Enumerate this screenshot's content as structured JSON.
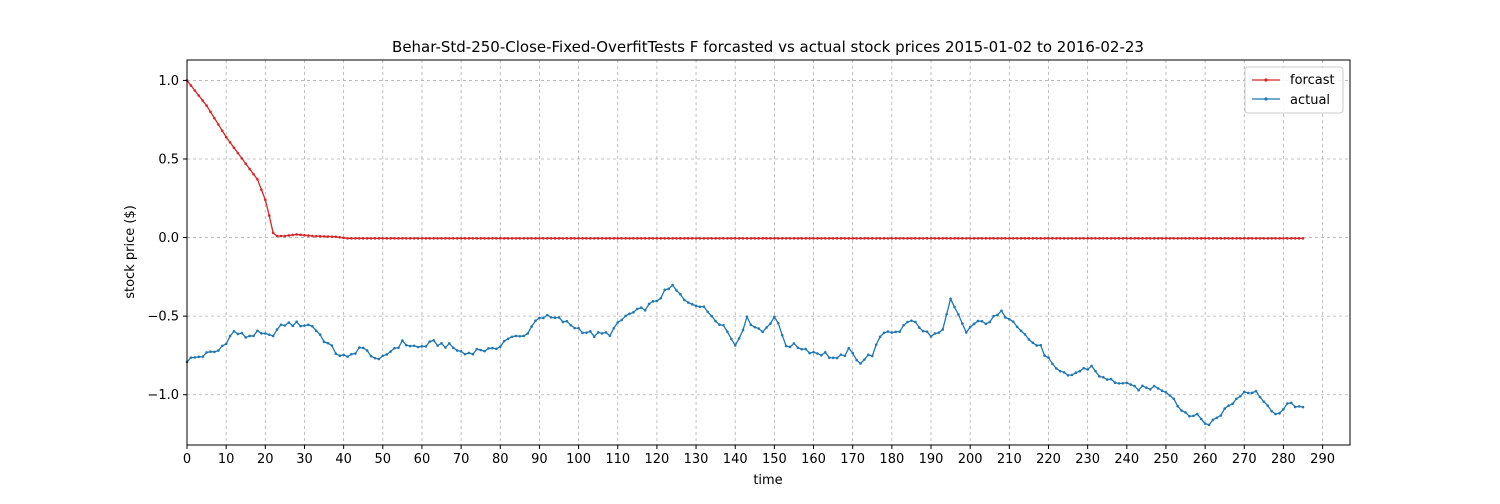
{
  "chart_data": {
    "type": "line",
    "title": "Behar-Std-250-Close-Fixed-OverfitTests F forcasted vs actual stock prices 2015-01-02 to 2016-02-23",
    "xlabel": "time",
    "ylabel": "stock price ($)",
    "xlim": [
      0,
      297
    ],
    "ylim": [
      -1.32,
      1.13
    ],
    "xticks": [
      0,
      10,
      20,
      30,
      40,
      50,
      60,
      70,
      80,
      90,
      100,
      110,
      120,
      130,
      140,
      150,
      160,
      170,
      180,
      190,
      200,
      210,
      220,
      230,
      240,
      250,
      260,
      270,
      280,
      290
    ],
    "yticks": [
      1.0,
      0.5,
      0.0,
      -0.5,
      -1.0
    ],
    "ytick_labels": [
      "1.0",
      "0.5",
      "0.0",
      "−0.5",
      "−1.0"
    ],
    "grid": true,
    "legend_position": "top-right",
    "n_points": 286,
    "series": [
      {
        "name": "forcast",
        "color": "#d62728",
        "keypoints": [
          [
            0,
            1.0
          ],
          [
            5,
            0.84
          ],
          [
            10,
            0.64
          ],
          [
            15,
            0.47
          ],
          [
            18,
            0.37
          ],
          [
            20,
            0.24
          ],
          [
            21,
            0.14
          ],
          [
            22,
            0.03
          ],
          [
            23,
            0.01
          ],
          [
            25,
            0.01
          ],
          [
            28,
            0.02
          ],
          [
            32,
            0.01
          ],
          [
            38,
            0.005
          ],
          [
            41,
            -0.005
          ],
          [
            285,
            -0.005
          ]
        ]
      },
      {
        "name": "actual",
        "color": "#1f77b4",
        "keypoints": [
          [
            0,
            -0.78
          ],
          [
            4,
            -0.75
          ],
          [
            8,
            -0.72
          ],
          [
            12,
            -0.6
          ],
          [
            15,
            -0.63
          ],
          [
            18,
            -0.61
          ],
          [
            21,
            -0.63
          ],
          [
            25,
            -0.55
          ],
          [
            28,
            -0.55
          ],
          [
            32,
            -0.56
          ],
          [
            35,
            -0.65
          ],
          [
            38,
            -0.73
          ],
          [
            41,
            -0.77
          ],
          [
            44,
            -0.7
          ],
          [
            47,
            -0.74
          ],
          [
            49,
            -0.79
          ],
          [
            52,
            -0.72
          ],
          [
            55,
            -0.67
          ],
          [
            59,
            -0.7
          ],
          [
            63,
            -0.67
          ],
          [
            67,
            -0.69
          ],
          [
            71,
            -0.74
          ],
          [
            75,
            -0.71
          ],
          [
            78,
            -0.72
          ],
          [
            82,
            -0.64
          ],
          [
            86,
            -0.63
          ],
          [
            90,
            -0.5
          ],
          [
            95,
            -0.52
          ],
          [
            100,
            -0.58
          ],
          [
            104,
            -0.62
          ],
          [
            108,
            -0.61
          ],
          [
            112,
            -0.5
          ],
          [
            116,
            -0.46
          ],
          [
            119,
            -0.42
          ],
          [
            122,
            -0.35
          ],
          [
            124,
            -0.31
          ],
          [
            127,
            -0.4
          ],
          [
            130,
            -0.42
          ],
          [
            133,
            -0.47
          ],
          [
            137,
            -0.56
          ],
          [
            140,
            -0.68
          ],
          [
            143,
            -0.52
          ],
          [
            147,
            -0.6
          ],
          [
            150,
            -0.5
          ],
          [
            153,
            -0.68
          ],
          [
            157,
            -0.7
          ],
          [
            160,
            -0.73
          ],
          [
            163,
            -0.74
          ],
          [
            166,
            -0.78
          ],
          [
            169,
            -0.72
          ],
          [
            172,
            -0.79
          ],
          [
            175,
            -0.74
          ],
          [
            178,
            -0.6
          ],
          [
            182,
            -0.59
          ],
          [
            185,
            -0.52
          ],
          [
            188,
            -0.6
          ],
          [
            191,
            -0.62
          ],
          [
            193,
            -0.6
          ],
          [
            195,
            -0.4
          ],
          [
            199,
            -0.6
          ],
          [
            201,
            -0.55
          ],
          [
            205,
            -0.53
          ],
          [
            208,
            -0.48
          ],
          [
            211,
            -0.52
          ],
          [
            215,
            -0.65
          ],
          [
            218,
            -0.7
          ],
          [
            222,
            -0.85
          ],
          [
            225,
            -0.88
          ],
          [
            228,
            -0.85
          ],
          [
            231,
            -0.82
          ],
          [
            234,
            -0.9
          ],
          [
            238,
            -0.92
          ],
          [
            241,
            -0.95
          ],
          [
            244,
            -0.96
          ],
          [
            248,
            -0.95
          ],
          [
            251,
            -0.99
          ],
          [
            254,
            -1.1
          ],
          [
            258,
            -1.14
          ],
          [
            261,
            -1.19
          ],
          [
            264,
            -1.12
          ],
          [
            267,
            -1.05
          ],
          [
            270,
            -0.98
          ],
          [
            273,
            -0.97
          ],
          [
            276,
            -1.08
          ],
          [
            279,
            -1.12
          ],
          [
            282,
            -1.05
          ],
          [
            285,
            -1.09
          ]
        ]
      }
    ]
  }
}
